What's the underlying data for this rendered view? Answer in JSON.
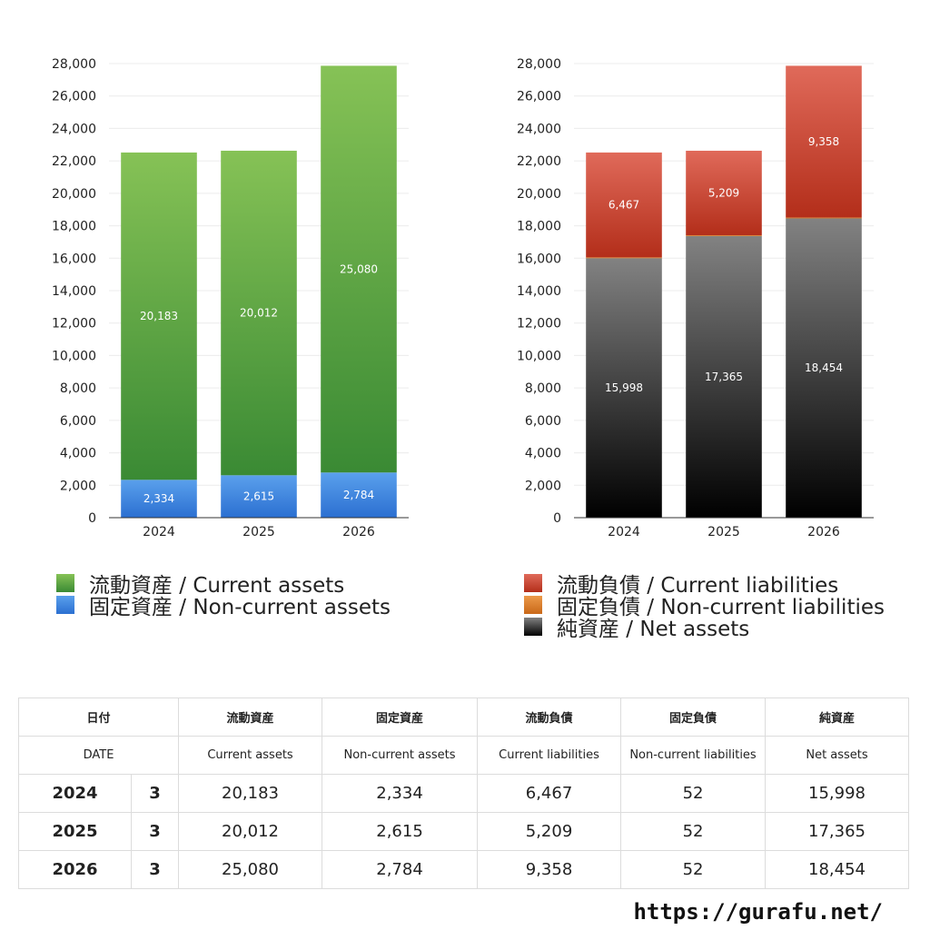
{
  "chart_data": [
    {
      "type": "bar",
      "stacked": true,
      "categories": [
        "2024",
        "2025",
        "2026"
      ],
      "ylim": [
        0,
        28000
      ],
      "yticks": [
        0,
        2000,
        4000,
        6000,
        8000,
        10000,
        12000,
        14000,
        16000,
        18000,
        20000,
        22000,
        24000,
        26000,
        28000
      ],
      "grid": true,
      "series": [
        {
          "name": "固定資産 / Non-current assets",
          "values": [
            2334,
            2615,
            2784
          ],
          "color_top": "#5aa0ec",
          "color_bottom": "#2b6fd1"
        },
        {
          "name": "流動資産 / Current assets",
          "values": [
            20183,
            20012,
            25080
          ],
          "color_top": "#86c256",
          "color_bottom": "#3a8a34"
        }
      ],
      "legend_order": [
        1,
        0
      ],
      "legend_placement": "bottom"
    },
    {
      "type": "bar",
      "stacked": true,
      "categories": [
        "2024",
        "2025",
        "2026"
      ],
      "ylim": [
        0,
        28000
      ],
      "yticks": [
        0,
        2000,
        4000,
        6000,
        8000,
        10000,
        12000,
        14000,
        16000,
        18000,
        20000,
        22000,
        24000,
        26000,
        28000
      ],
      "grid": true,
      "series": [
        {
          "name": "純資産 / Net assets",
          "values": [
            15998,
            17365,
            18454
          ],
          "color_top": "#828282",
          "color_bottom": "#000000"
        },
        {
          "name": "固定負債 / Non-current liabilities",
          "values": [
            52,
            52,
            52
          ],
          "color_top": "#ec9a4a",
          "color_bottom": "#c96818"
        },
        {
          "name": "流動負債 / Current liabilities",
          "values": [
            6467,
            5209,
            9358
          ],
          "color_top": "#e06a5a",
          "color_bottom": "#b32e1a"
        }
      ],
      "legend_order": [
        2,
        1,
        0
      ],
      "legend_placement": "bottom"
    }
  ],
  "table": {
    "headers_ja": [
      "日付",
      "流動資産",
      "固定資産",
      "流動負債",
      "固定負債",
      "純資産"
    ],
    "headers_en": [
      "DATE",
      "Current assets",
      "Non-current assets",
      "Current liabilities",
      "Non-current liabilities",
      "Net assets"
    ],
    "rows": [
      {
        "year": "2024",
        "month": "3",
        "values": [
          "20,183",
          "2,334",
          "6,467",
          "52",
          "15,998"
        ]
      },
      {
        "year": "2025",
        "month": "3",
        "values": [
          "20,012",
          "2,615",
          "5,209",
          "52",
          "17,365"
        ]
      },
      {
        "year": "2026",
        "month": "3",
        "values": [
          "25,080",
          "2,784",
          "9,358",
          "52",
          "18,454"
        ]
      }
    ]
  },
  "site_url": "https://gurafu.net/"
}
